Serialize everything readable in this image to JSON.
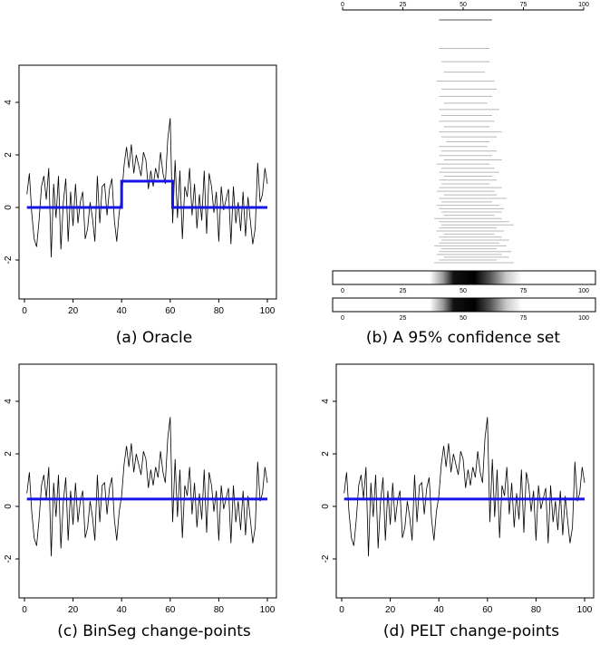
{
  "captions": {
    "a": "(a) Oracle",
    "b": "(b) A 95% confidence set",
    "c": "(c) BinSeg change-points",
    "d": "(d) PELT change-points"
  },
  "colors": {
    "fit": "#1515e6",
    "series": "#000000",
    "interval": "#b8b8b8"
  },
  "chart_data": [
    {
      "id": "a",
      "type": "line",
      "xlim": [
        0,
        100
      ],
      "ylim": [
        -3,
        5
      ],
      "xticks": [
        "0",
        "20",
        "40",
        "60",
        "80",
        "100"
      ],
      "yticks": [
        "-2",
        "0",
        "2",
        "4"
      ],
      "series": [
        {
          "x": [
            1,
            2,
            3,
            4,
            5,
            6,
            7,
            8,
            9,
            10,
            11,
            12,
            13,
            14,
            15,
            16,
            17,
            18,
            19,
            20,
            21,
            22,
            23,
            24,
            25,
            26,
            27,
            28,
            29,
            30,
            31,
            32,
            33,
            34,
            35,
            36,
            37,
            38,
            39,
            40,
            41,
            42,
            43,
            44,
            45,
            46,
            47,
            48,
            49,
            50,
            51,
            52,
            53,
            54,
            55,
            56,
            57,
            58,
            59,
            60,
            61,
            62,
            63,
            64,
            65,
            66,
            67,
            68,
            69,
            70,
            71,
            72,
            73,
            74,
            75,
            76,
            77,
            78,
            79,
            80,
            81,
            82,
            83,
            84,
            85,
            86,
            87,
            88,
            89,
            90,
            91,
            92,
            93,
            94,
            95,
            96,
            97,
            98,
            99,
            100
          ],
          "y": [
            0.5,
            1.3,
            -0.2,
            -1.2,
            -1.5,
            -0.5,
            0.8,
            1.2,
            0.3,
            1.5,
            -1.9,
            0.9,
            -0.4,
            1.2,
            -1.6,
            0.2,
            1.1,
            -1.3,
            0.6,
            -0.7,
            0.9,
            -0.6,
            0.2,
            0.6,
            -1.2,
            -0.8,
            0.2,
            -0.4,
            -1.3,
            1.2,
            -0.6,
            0.8,
            0.9,
            -0.3,
            0.7,
            1.1,
            -0.5,
            -1.3,
            -0.2,
            0.4,
            1.6,
            2.3,
            1.5,
            2.4,
            1.3,
            2.0,
            1.6,
            1.2,
            2.1,
            1.8,
            0.7,
            1.4,
            0.8,
            1.5,
            1.1,
            2.1,
            1.3,
            0.9,
            2.6,
            3.4,
            -0.6,
            1.8,
            -0.4,
            1.4,
            -1.2,
            0.8,
            0.4,
            1.5,
            -0.3,
            0.9,
            -0.8,
            0.5,
            -0.5,
            1.4,
            -1.0,
            1.3,
            0.8,
            -0.2,
            0.6,
            -1.3,
            0.8,
            -0.1,
            0.3,
            0.7,
            -1.4,
            0.8,
            -0.6,
            0.2,
            -0.9,
            0.6,
            -1.1,
            0.4,
            -0.5,
            -1.4,
            -0.8,
            1.7,
            0.2,
            0.5,
            1.5,
            0.9
          ]
        },
        {
          "name": "",
          "x": [
            1,
            40,
            40,
            61,
            61,
            100
          ],
          "y": [
            0,
            0,
            1,
            1,
            0,
            0
          ]
        }
      ]
    },
    {
      "id": "b",
      "type": "interval",
      "xlim": [
        0,
        100
      ],
      "top_axis_ticks": [
        "0",
        "25",
        "50",
        "75",
        "100"
      ],
      "bar_ticks": [
        "0",
        "25",
        "50",
        "75",
        "100"
      ],
      "intervals": [
        [
          40,
          62
        ],
        [
          40,
          61
        ],
        [
          41,
          61
        ],
        [
          42,
          59
        ],
        [
          39,
          63
        ],
        [
          41,
          64
        ],
        [
          40,
          62
        ],
        [
          42,
          60
        ],
        [
          40,
          65
        ],
        [
          41,
          62
        ],
        [
          40,
          63
        ],
        [
          42,
          61
        ],
        [
          40,
          66
        ],
        [
          41,
          64
        ],
        [
          43,
          61
        ],
        [
          40,
          60
        ],
        [
          41,
          64
        ],
        [
          40,
          62
        ],
        [
          42,
          66
        ],
        [
          39,
          61
        ],
        [
          41,
          63
        ],
        [
          40,
          65
        ],
        [
          42,
          62
        ],
        [
          40,
          64
        ],
        [
          41,
          61
        ],
        [
          40,
          66
        ],
        [
          39,
          63
        ],
        [
          42,
          64
        ],
        [
          40,
          68
        ],
        [
          41,
          62
        ],
        [
          39,
          65
        ],
        [
          40,
          67
        ],
        [
          41,
          66
        ],
        [
          42,
          63
        ],
        [
          38,
          66
        ],
        [
          40,
          69
        ],
        [
          41,
          71
        ],
        [
          40,
          64
        ],
        [
          39,
          67
        ],
        [
          42,
          63
        ],
        [
          40,
          66
        ],
        [
          41,
          69
        ],
        [
          40,
          65
        ],
        [
          38,
          68
        ],
        [
          41,
          64
        ],
        [
          40,
          70
        ],
        [
          39,
          66
        ],
        [
          42,
          69
        ],
        [
          40,
          64
        ],
        [
          38,
          71
        ]
      ],
      "density_peak": 50
    },
    {
      "id": "c",
      "type": "line",
      "xlim": [
        0,
        100
      ],
      "ylim": [
        -3,
        5
      ],
      "xticks": [
        "0",
        "20",
        "40",
        "60",
        "80",
        "100"
      ],
      "yticks": [
        "-2",
        "0",
        "2",
        "4"
      ],
      "fit_level": 0.28
    },
    {
      "id": "d",
      "type": "line",
      "xlim": [
        0,
        100
      ],
      "ylim": [
        -3,
        5
      ],
      "xticks": [
        "0",
        "20",
        "40",
        "60",
        "80",
        "100"
      ],
      "yticks": [
        "-2",
        "0",
        "2",
        "4"
      ],
      "fit_level": 0.28
    }
  ]
}
